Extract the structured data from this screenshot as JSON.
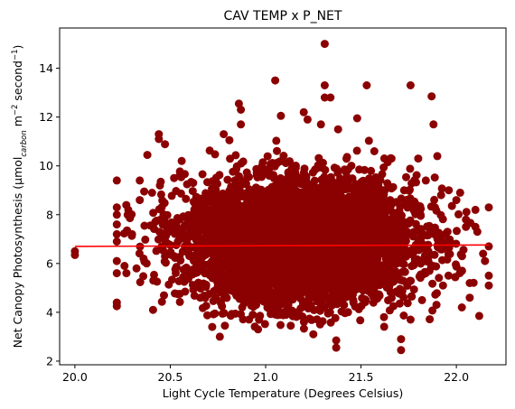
{
  "chart_data": {
    "type": "scatter",
    "title": "CAV TEMP x P_NET",
    "xlabel": "Light Cycle Temperature (Degrees Celsius)",
    "ylabel_parts": {
      "main": "Net Canopy Photosynthesis (μmol",
      "sub": "carbon",
      "m": " m",
      "sup1": "−2",
      "sec": " second",
      "sup2": "−1",
      "close": ")"
    },
    "xlim": [
      19.92,
      22.26
    ],
    "ylim": [
      1.85,
      15.65
    ],
    "x_ticks": [
      20.0,
      20.5,
      21.0,
      21.5,
      22.0
    ],
    "x_tick_labels": [
      "20.0",
      "20.5",
      "21.0",
      "21.5",
      "22.0"
    ],
    "y_ticks": [
      2,
      4,
      6,
      8,
      10,
      12,
      14
    ],
    "y_tick_labels": [
      "2",
      "4",
      "6",
      "8",
      "10",
      "12",
      "14"
    ],
    "grid": false,
    "point_color": "#8b0000",
    "trend_color": "#ff0000",
    "trend_line": {
      "x": [
        20.0,
        22.17
      ],
      "y": [
        6.7,
        6.76
      ]
    },
    "cloud": {
      "x_center": 21.18,
      "x_spread": 0.3,
      "y_center": 6.9,
      "y_spread": 1.25,
      "count": 5000
    },
    "points": [
      {
        "x": 20.0,
        "y": 6.5
      },
      {
        "x": 20.0,
        "y": 6.35
      },
      {
        "x": 20.22,
        "y": 9.4
      },
      {
        "x": 20.22,
        "y": 8.3
      },
      {
        "x": 20.22,
        "y": 8.0
      },
      {
        "x": 20.22,
        "y": 7.6
      },
      {
        "x": 20.22,
        "y": 7.2
      },
      {
        "x": 20.22,
        "y": 6.9
      },
      {
        "x": 20.22,
        "y": 6.1
      },
      {
        "x": 20.22,
        "y": 5.6
      },
      {
        "x": 20.22,
        "y": 4.4
      },
      {
        "x": 20.22,
        "y": 4.25
      },
      {
        "x": 20.26,
        "y": 5.9
      },
      {
        "x": 20.27,
        "y": 5.6
      },
      {
        "x": 20.28,
        "y": 8.2
      },
      {
        "x": 20.3,
        "y": 7.2
      },
      {
        "x": 20.34,
        "y": 9.4
      },
      {
        "x": 20.34,
        "y": 8.6
      },
      {
        "x": 20.36,
        "y": 6.2
      },
      {
        "x": 20.38,
        "y": 10.45
      },
      {
        "x": 20.41,
        "y": 4.1
      },
      {
        "x": 20.44,
        "y": 11.3
      },
      {
        "x": 20.44,
        "y": 11.1
      },
      {
        "x": 20.45,
        "y": 9.35
      },
      {
        "x": 20.52,
        "y": 9.5
      },
      {
        "x": 20.56,
        "y": 10.2
      },
      {
        "x": 20.62,
        "y": 9.3
      },
      {
        "x": 20.72,
        "y": 3.4
      },
      {
        "x": 20.76,
        "y": 3.0
      },
      {
        "x": 20.78,
        "y": 11.3
      },
      {
        "x": 20.81,
        "y": 11.05
      },
      {
        "x": 20.86,
        "y": 12.55
      },
      {
        "x": 20.87,
        "y": 12.3
      },
      {
        "x": 20.87,
        "y": 11.7
      },
      {
        "x": 20.96,
        "y": 3.3
      },
      {
        "x": 21.05,
        "y": 13.5
      },
      {
        "x": 21.08,
        "y": 12.05
      },
      {
        "x": 21.2,
        "y": 12.2
      },
      {
        "x": 21.22,
        "y": 11.9
      },
      {
        "x": 21.25,
        "y": 3.1
      },
      {
        "x": 21.29,
        "y": 11.7
      },
      {
        "x": 21.31,
        "y": 15.0
      },
      {
        "x": 21.31,
        "y": 13.3
      },
      {
        "x": 21.31,
        "y": 12.8
      },
      {
        "x": 21.34,
        "y": 12.8
      },
      {
        "x": 21.37,
        "y": 2.85
      },
      {
        "x": 21.37,
        "y": 2.55
      },
      {
        "x": 21.38,
        "y": 11.5
      },
      {
        "x": 21.48,
        "y": 11.95
      },
      {
        "x": 21.53,
        "y": 13.3
      },
      {
        "x": 21.57,
        "y": 10.6
      },
      {
        "x": 21.64,
        "y": 10.15
      },
      {
        "x": 21.66,
        "y": 10.3
      },
      {
        "x": 21.71,
        "y": 2.9
      },
      {
        "x": 21.71,
        "y": 2.45
      },
      {
        "x": 21.76,
        "y": 13.3
      },
      {
        "x": 21.76,
        "y": 3.7
      },
      {
        "x": 21.8,
        "y": 10.3
      },
      {
        "x": 21.82,
        "y": 4.5
      },
      {
        "x": 21.84,
        "y": 9.4
      },
      {
        "x": 21.87,
        "y": 12.85
      },
      {
        "x": 21.88,
        "y": 11.7
      },
      {
        "x": 21.9,
        "y": 10.4
      },
      {
        "x": 21.92,
        "y": 8.8
      },
      {
        "x": 21.93,
        "y": 5.1
      },
      {
        "x": 21.96,
        "y": 9.0
      },
      {
        "x": 22.0,
        "y": 8.6
      },
      {
        "x": 22.02,
        "y": 8.9
      },
      {
        "x": 22.03,
        "y": 6.3
      },
      {
        "x": 22.03,
        "y": 5.7
      },
      {
        "x": 22.05,
        "y": 7.8
      },
      {
        "x": 22.05,
        "y": 7.5
      },
      {
        "x": 22.07,
        "y": 5.2
      },
      {
        "x": 22.07,
        "y": 4.6
      },
      {
        "x": 22.1,
        "y": 8.2
      },
      {
        "x": 22.1,
        "y": 7.5
      },
      {
        "x": 22.11,
        "y": 7.3
      },
      {
        "x": 22.12,
        "y": 3.85
      },
      {
        "x": 22.14,
        "y": 6.4
      },
      {
        "x": 22.15,
        "y": 6.1
      },
      {
        "x": 22.17,
        "y": 8.3
      },
      {
        "x": 22.17,
        "y": 6.7
      },
      {
        "x": 22.17,
        "y": 5.5
      },
      {
        "x": 22.17,
        "y": 5.1
      }
    ]
  }
}
